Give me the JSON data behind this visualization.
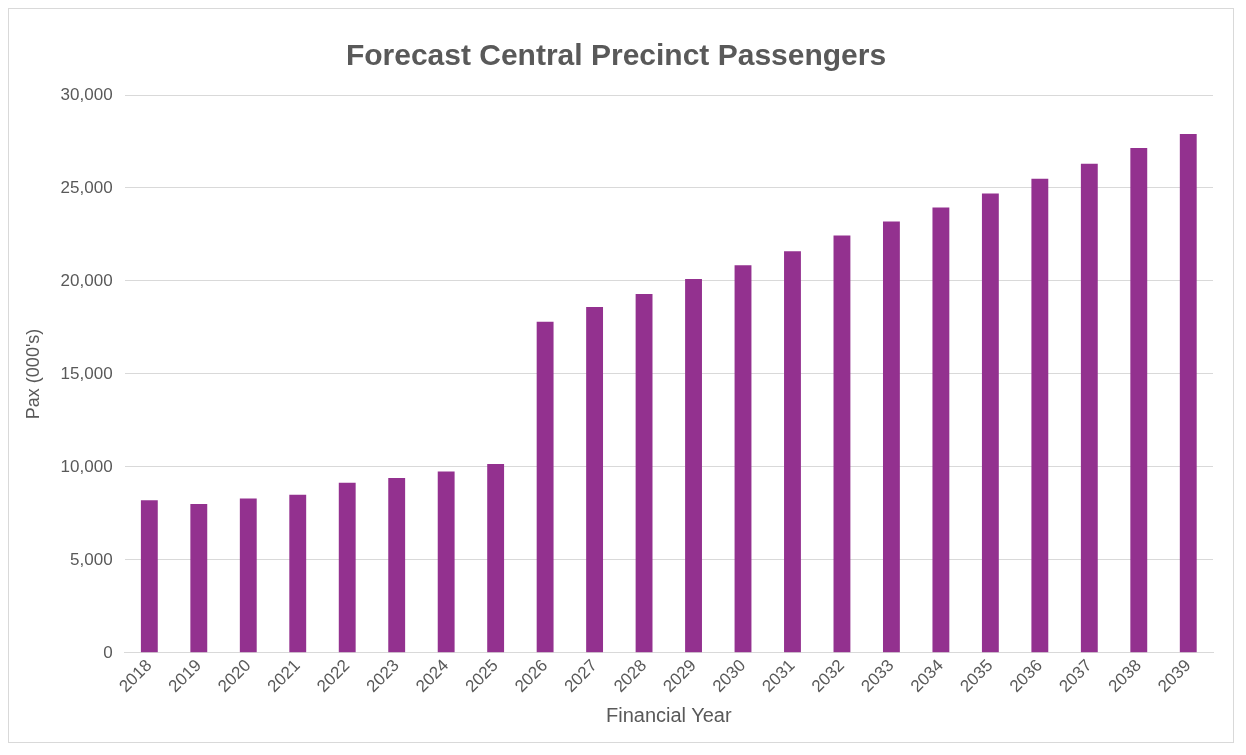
{
  "chart_data": {
    "type": "bar",
    "title": "Forecast Central Precinct Passengers",
    "xlabel": "Financial Year",
    "ylabel": "Pax (000's)",
    "categories": [
      "2018",
      "2019",
      "2020",
      "2021",
      "2022",
      "2023",
      "2024",
      "2025",
      "2026",
      "2027",
      "2028",
      "2029",
      "2030",
      "2031",
      "2032",
      "2033",
      "2034",
      "2035",
      "2036",
      "2037",
      "2038",
      "2039"
    ],
    "values": [
      8200,
      8000,
      8300,
      8500,
      9150,
      9400,
      9750,
      10150,
      17800,
      18600,
      19300,
      20100,
      20850,
      21600,
      22450,
      23200,
      23950,
      24700,
      25500,
      26300,
      27150,
      27900
    ],
    "color": "#93318f",
    "ylim": [
      0,
      30000
    ],
    "yticks": [
      {
        "value": 0,
        "label": "0"
      },
      {
        "value": 5000,
        "label": "5,000"
      },
      {
        "value": 10000,
        "label": "10,000"
      },
      {
        "value": 15000,
        "label": "15,000"
      },
      {
        "value": 20000,
        "label": "20,000"
      },
      {
        "value": 25000,
        "label": "25,000"
      },
      {
        "value": 30000,
        "label": "30,000"
      }
    ],
    "grid": "y"
  }
}
